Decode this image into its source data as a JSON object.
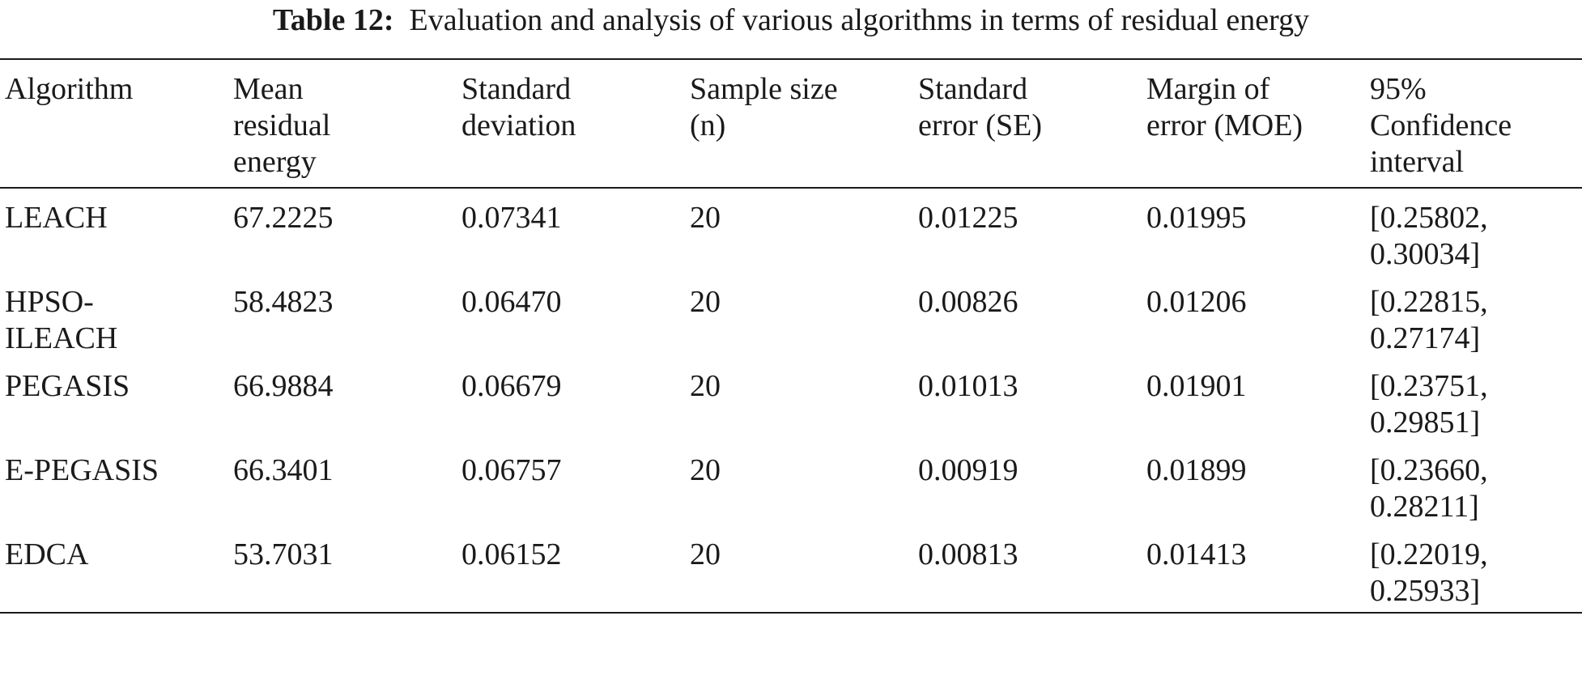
{
  "caption": {
    "label": "Table 12:",
    "text": "Evaluation and analysis of various algorithms in terms of residual energy"
  },
  "table": {
    "headers": [
      [
        "Algorithm"
      ],
      [
        "Mean",
        "residual",
        "energy"
      ],
      [
        "Standard",
        "deviation"
      ],
      [
        "Sample size",
        "(n)"
      ],
      [
        "Standard",
        "error (SE)"
      ],
      [
        "Margin of",
        "error (MOE)"
      ],
      [
        "95%",
        "Confidence",
        "interval"
      ]
    ],
    "rows": [
      {
        "algorithm": [
          "LEACH"
        ],
        "mean": "67.2225",
        "sd": "0.07341",
        "n": "20",
        "se": "0.01225",
        "moe": "0.01995",
        "ci": [
          "[0.25802,",
          "0.30034]"
        ]
      },
      {
        "algorithm": [
          "HPSO-",
          "ILEACH"
        ],
        "mean": "58.4823",
        "sd": "0.06470",
        "n": "20",
        "se": "0.00826",
        "moe": "0.01206",
        "ci": [
          "[0.22815,",
          "0.27174]"
        ]
      },
      {
        "algorithm": [
          "PEGASIS"
        ],
        "mean": "66.9884",
        "sd": "0.06679",
        "n": "20",
        "se": "0.01013",
        "moe": "0.01901",
        "ci": [
          "[0.23751,",
          "0.29851]"
        ]
      },
      {
        "algorithm": [
          "E-PEGASIS"
        ],
        "mean": "66.3401",
        "sd": "0.06757",
        "n": "20",
        "se": "0.00919",
        "moe": "0.01899",
        "ci": [
          "[0.23660,",
          "0.28211]"
        ]
      },
      {
        "algorithm": [
          "EDCA"
        ],
        "mean": "53.7031",
        "sd": "0.06152",
        "n": "20",
        "se": "0.00813",
        "moe": "0.01413",
        "ci": [
          "[0.22019,",
          "0.25933]"
        ]
      }
    ]
  }
}
